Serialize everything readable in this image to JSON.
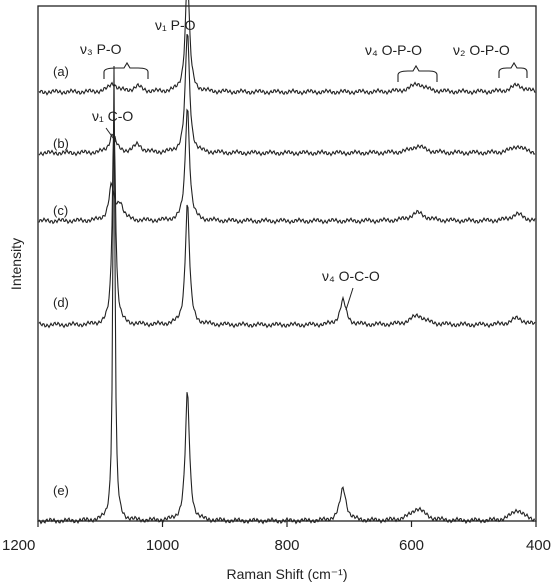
{
  "chart_data": {
    "type": "line",
    "title": "",
    "xlabel": "Raman Shift (cm⁻¹)",
    "ylabel": "Intensity",
    "xlim": [
      1200,
      400
    ],
    "x_reversed": true,
    "x_ticks": [
      1200,
      1000,
      800,
      600,
      400
    ],
    "x_tick_labels": [
      "1200",
      "1000",
      "800",
      "600",
      "400"
    ],
    "grid": false,
    "legend": "none",
    "series_labels": [
      "(a)",
      "(b)",
      "(c)",
      "(d)",
      "(e)"
    ],
    "annotations": [
      {
        "text": "ν₃ P-O",
        "x": 1060
      },
      {
        "text": "ν₁ P-O",
        "x": 960
      },
      {
        "text": "ν₄ O-P-O",
        "x": 590
      },
      {
        "text": "ν₂ O-P-O",
        "x": 430
      },
      {
        "text": "ν₁ C-O",
        "x": 1080
      },
      {
        "text": "ν₄ O-C-O",
        "x": 710
      }
    ],
    "series": [
      {
        "baseline": 0.0,
        "peaks": [
          [
            1080,
            0.006,
            8
          ],
          [
            1040,
            0.004,
            8
          ],
          [
            960,
            0.085,
            4
          ],
          [
            590,
            0.006,
            14
          ],
          [
            430,
            0.005,
            12
          ]
        ]
      },
      {
        "baseline": 0.0,
        "peaks": [
          [
            1080,
            0.014,
            6
          ],
          [
            1040,
            0.006,
            8
          ],
          [
            960,
            0.09,
            4
          ],
          [
            590,
            0.005,
            14
          ],
          [
            430,
            0.005,
            12
          ]
        ]
      },
      {
        "baseline": 0.0,
        "peaks": [
          [
            1082,
            0.025,
            5
          ],
          [
            1068,
            0.012,
            6
          ],
          [
            960,
            0.085,
            4
          ],
          [
            590,
            0.006,
            14
          ],
          [
            430,
            0.005,
            12
          ]
        ]
      },
      {
        "baseline": 0.0,
        "peaks": [
          [
            1078,
            0.155,
            3
          ],
          [
            960,
            0.09,
            4
          ],
          [
            710,
            0.018,
            6
          ],
          [
            590,
            0.007,
            14
          ],
          [
            430,
            0.005,
            12
          ]
        ]
      },
      {
        "baseline": 0.0,
        "peaks": [
          [
            1078,
            0.335,
            2
          ],
          [
            960,
            0.095,
            4
          ],
          [
            710,
            0.024,
            6
          ],
          [
            590,
            0.009,
            14
          ],
          [
            430,
            0.008,
            12
          ]
        ]
      }
    ]
  }
}
